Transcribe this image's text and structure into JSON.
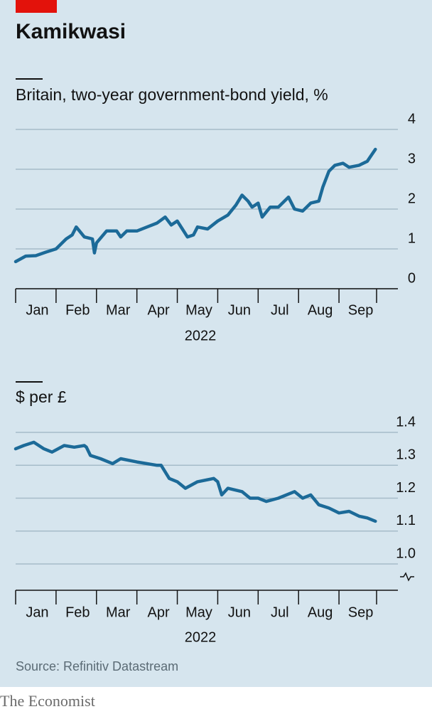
{
  "header": {
    "title": "Kamikwasi"
  },
  "footer": {
    "source": "Source: Refinitiv Datastream",
    "brand": "The Economist"
  },
  "chart_data": [
    {
      "type": "line",
      "title": "Britain, two-year government-bond yield, %",
      "color": "#1c6a98",
      "grid": true,
      "categories": [
        "Jan",
        "Feb",
        "Mar",
        "Apr",
        "May",
        "Jun",
        "Jul",
        "Aug",
        "Sep"
      ],
      "xlabel": "2022",
      "xlim": [
        0,
        8.93
      ],
      "xticks": [
        0,
        1,
        2,
        3,
        4,
        5,
        6,
        7,
        8,
        8.93
      ],
      "ylim": [
        0,
        4
      ],
      "yticks": [
        0,
        1,
        2,
        3,
        4
      ],
      "x": [
        0,
        0.25,
        0.5,
        0.75,
        1.0,
        1.25,
        1.4,
        1.5,
        1.7,
        1.9,
        1.95,
        2.0,
        2.25,
        2.5,
        2.6,
        2.75,
        3.0,
        3.25,
        3.5,
        3.7,
        3.85,
        4.0,
        4.25,
        4.4,
        4.5,
        4.75,
        5.0,
        5.25,
        5.45,
        5.6,
        5.75,
        5.85,
        6.0,
        6.1,
        6.3,
        6.5,
        6.75,
        6.9,
        7.1,
        7.3,
        7.5,
        7.6,
        7.75,
        7.9,
        8.1,
        8.25,
        8.5,
        8.7,
        8.8,
        8.9
      ],
      "values": [
        0.68,
        0.82,
        0.83,
        0.92,
        1.0,
        1.25,
        1.35,
        1.55,
        1.3,
        1.25,
        0.9,
        1.15,
        1.45,
        1.45,
        1.3,
        1.45,
        1.45,
        1.55,
        1.65,
        1.8,
        1.6,
        1.7,
        1.3,
        1.35,
        1.55,
        1.5,
        1.7,
        1.85,
        2.1,
        2.35,
        2.2,
        2.05,
        2.15,
        1.8,
        2.05,
        2.05,
        2.3,
        2.0,
        1.95,
        2.15,
        2.2,
        2.55,
        2.95,
        3.1,
        3.15,
        3.05,
        3.1,
        3.2,
        3.35,
        3.5
      ]
    },
    {
      "type": "line",
      "title": "$ per £",
      "color": "#1c6a98",
      "grid": true,
      "categories": [
        "Jan",
        "Feb",
        "Mar",
        "Apr",
        "May",
        "Jun",
        "Jul",
        "Aug",
        "Sep"
      ],
      "xlabel": "2022",
      "xlim": [
        0,
        8.93
      ],
      "xticks": [
        0,
        1,
        2,
        3,
        4,
        5,
        6,
        7,
        8,
        8.93
      ],
      "ylim": [
        0.92,
        1.4
      ],
      "yticks": [
        {
          "value": 1.0,
          "label": "1.0"
        },
        1.1,
        1.2,
        1.3,
        1.4
      ],
      "x": [
        0,
        0.2,
        0.45,
        0.7,
        0.9,
        1.2,
        1.45,
        1.7,
        1.75,
        1.85,
        2.1,
        2.4,
        2.6,
        3.0,
        3.5,
        3.6,
        3.8,
        4.0,
        4.2,
        4.5,
        4.9,
        5.0,
        5.1,
        5.25,
        5.6,
        5.8,
        6.0,
        6.2,
        6.5,
        6.9,
        7.1,
        7.3,
        7.5,
        7.75,
        8.0,
        8.25,
        8.5,
        8.7,
        8.9
      ],
      "values": [
        1.35,
        1.36,
        1.37,
        1.35,
        1.34,
        1.36,
        1.355,
        1.36,
        1.355,
        1.33,
        1.32,
        1.305,
        1.32,
        1.31,
        1.3,
        1.3,
        1.26,
        1.25,
        1.23,
        1.25,
        1.26,
        1.25,
        1.21,
        1.23,
        1.22,
        1.2,
        1.2,
        1.19,
        1.2,
        1.22,
        1.2,
        1.21,
        1.18,
        1.17,
        1.155,
        1.16,
        1.145,
        1.14,
        1.13
      ]
    }
  ]
}
